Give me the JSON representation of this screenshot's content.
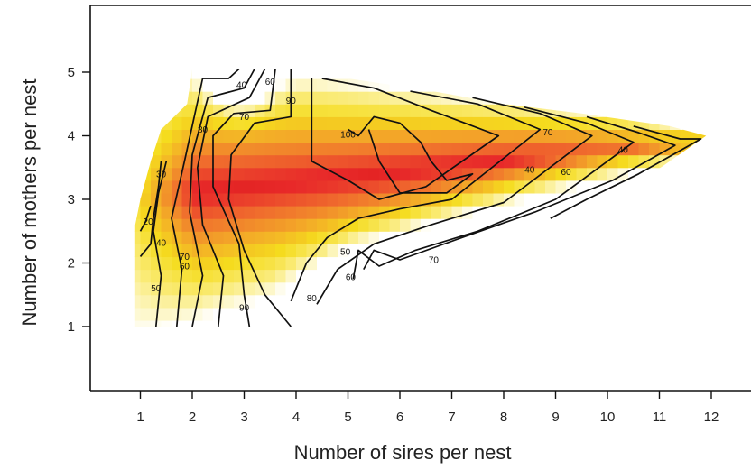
{
  "chart_data": {
    "type": "heatmap",
    "title": "",
    "xlabel": "Number of sires per nest",
    "ylabel": "Number of mothers per nest",
    "xlim": [
      0,
      12.8
    ],
    "ylim": [
      0,
      6
    ],
    "x_ticks": [
      1,
      2,
      3,
      4,
      5,
      6,
      7,
      8,
      9,
      10,
      11,
      12
    ],
    "y_ticks": [
      1,
      2,
      3,
      4,
      5
    ],
    "color_scale": {
      "low": "#ffffff",
      "mid_low": "#f5e400",
      "mid": "#f39a26",
      "high": "#e82a2a"
    },
    "value_range": [
      0,
      105
    ],
    "region_outline": [
      [
        0.9,
        1.0
      ],
      [
        3.8,
        1.0
      ],
      [
        5.6,
        1.8
      ],
      [
        8.3,
        2.6
      ],
      [
        10.5,
        3.2
      ],
      [
        11.9,
        4.0
      ],
      [
        11.2,
        4.15
      ],
      [
        9.5,
        4.35
      ],
      [
        8.0,
        4.5
      ],
      [
        6.5,
        4.72
      ],
      [
        5.0,
        4.9
      ],
      [
        3.9,
        5.05
      ],
      [
        2.0,
        5.05
      ],
      [
        1.9,
        4.5
      ],
      [
        1.4,
        4.1
      ],
      [
        1.2,
        3.6
      ],
      [
        1.0,
        3.0
      ],
      [
        0.9,
        2.6
      ]
    ],
    "contour_labels": [
      {
        "x": 2.95,
        "y": 4.8,
        "text": "40"
      },
      {
        "x": 3.5,
        "y": 4.85,
        "text": "60"
      },
      {
        "x": 3.9,
        "y": 4.55,
        "text": "90"
      },
      {
        "x": 3.0,
        "y": 4.3,
        "text": "70"
      },
      {
        "x": 2.2,
        "y": 4.1,
        "text": "80"
      },
      {
        "x": 5.0,
        "y": 4.02,
        "text": "100"
      },
      {
        "x": 8.85,
        "y": 4.06,
        "text": "70"
      },
      {
        "x": 10.3,
        "y": 3.78,
        "text": "40"
      },
      {
        "x": 9.2,
        "y": 3.43,
        "text": "60"
      },
      {
        "x": 8.5,
        "y": 3.47,
        "text": "40"
      },
      {
        "x": 1.4,
        "y": 3.4,
        "text": "30"
      },
      {
        "x": 1.15,
        "y": 2.65,
        "text": "20"
      },
      {
        "x": 1.4,
        "y": 2.32,
        "text": "40"
      },
      {
        "x": 1.85,
        "y": 2.1,
        "text": "70"
      },
      {
        "x": 1.85,
        "y": 1.95,
        "text": "60"
      },
      {
        "x": 1.3,
        "y": 1.6,
        "text": "50"
      },
      {
        "x": 4.95,
        "y": 2.18,
        "text": "50"
      },
      {
        "x": 5.05,
        "y": 1.78,
        "text": "60"
      },
      {
        "x": 6.65,
        "y": 2.05,
        "text": "70"
      },
      {
        "x": 4.3,
        "y": 1.45,
        "text": "80"
      },
      {
        "x": 3.0,
        "y": 1.3,
        "text": "90"
      }
    ]
  }
}
